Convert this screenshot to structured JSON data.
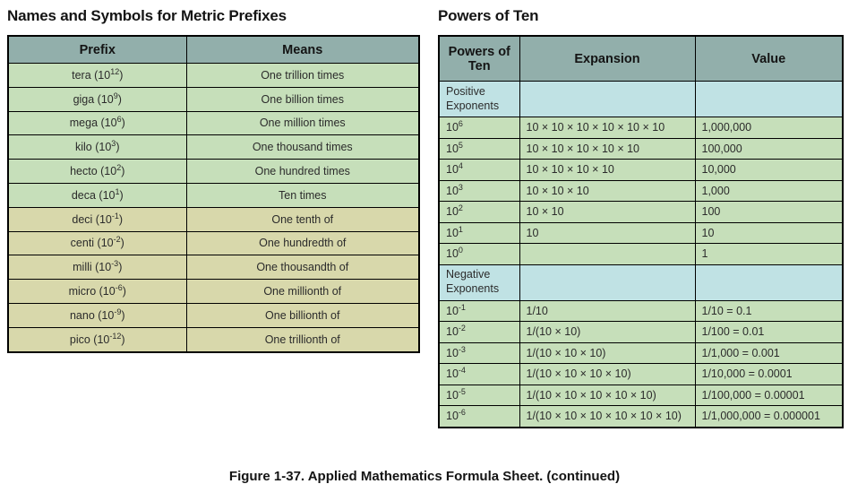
{
  "caption": "Figure 1-37. Applied Mathematics Formula Sheet. (continued)",
  "colors": {
    "header_bg": "#92afab",
    "positive_bg": "#c6dfba",
    "negative_bg": "#d8d8ab",
    "section_bg": "#c0e2e4",
    "border": "#000000"
  },
  "metric_prefixes": {
    "title": "Names and Symbols for Metric Prefixes",
    "columns": [
      "Prefix",
      "Means"
    ],
    "rows": [
      {
        "pre": "tera (10",
        "exp": "12",
        "post": ")",
        "means": "One trillion times",
        "group": "positive"
      },
      {
        "pre": "giga (10",
        "exp": "9",
        "post": ")",
        "means": "One billion times",
        "group": "positive"
      },
      {
        "pre": "mega (10",
        "exp": "6",
        "post": ")",
        "means": "One million times",
        "group": "positive"
      },
      {
        "pre": "kilo (10",
        "exp": "3",
        "post": ")",
        "means": "One thousand times",
        "group": "positive"
      },
      {
        "pre": "hecto (10",
        "exp": "2",
        "post": ")",
        "means": "One hundred times",
        "group": "positive"
      },
      {
        "pre": "deca (10",
        "exp": "1",
        "post": ")",
        "means": "Ten times",
        "group": "positive"
      },
      {
        "pre": "deci (10",
        "exp": "-1",
        "post": ")",
        "means": "One tenth of",
        "group": "negative"
      },
      {
        "pre": "centi (10",
        "exp": "-2",
        "post": ")",
        "means": "One hundredth of",
        "group": "negative"
      },
      {
        "pre": "milli (10",
        "exp": "-3",
        "post": ")",
        "means": "One thousandth of",
        "group": "negative"
      },
      {
        "pre": "micro (10",
        "exp": "-6",
        "post": ")",
        "means": "One millionth of",
        "group": "negative"
      },
      {
        "pre": "nano (10",
        "exp": "-9",
        "post": ")",
        "means": "One billionth of",
        "group": "negative"
      },
      {
        "pre": "pico (10",
        "exp": "-12",
        "post": ")",
        "means": "One trillionth of",
        "group": "negative"
      }
    ]
  },
  "powers_of_ten": {
    "title": "Powers of Ten",
    "columns": [
      "Powers of Ten",
      "Expansion",
      "Value"
    ],
    "sections": [
      {
        "label": "Positive Exponents",
        "rows": [
          {
            "base": "10",
            "exp": "6",
            "expansion": "10 × 10 × 10 × 10 × 10 × 10",
            "value": "1,000,000"
          },
          {
            "base": "10",
            "exp": "5",
            "expansion": "10 × 10 × 10 × 10 × 10",
            "value": "100,000"
          },
          {
            "base": "10",
            "exp": "4",
            "expansion": "10 × 10 × 10 × 10",
            "value": "10,000"
          },
          {
            "base": "10",
            "exp": "3",
            "expansion": "10 × 10 × 10",
            "value": "1,000"
          },
          {
            "base": "10",
            "exp": "2",
            "expansion": "10 × 10",
            "value": "100"
          },
          {
            "base": "10",
            "exp": "1",
            "expansion": "10",
            "value": "10"
          },
          {
            "base": "10",
            "exp": "0",
            "expansion": "",
            "value": "1"
          }
        ]
      },
      {
        "label": "Negative Exponents",
        "rows": [
          {
            "base": "10",
            "exp": "-1",
            "expansion": "1/10",
            "value": "1/10 = 0.1"
          },
          {
            "base": "10",
            "exp": "-2",
            "expansion": "1/(10 × 10)",
            "value": "1/100 = 0.01"
          },
          {
            "base": "10",
            "exp": "-3",
            "expansion": "1/(10 × 10 × 10)",
            "value": "1/1,000 = 0.001"
          },
          {
            "base": "10",
            "exp": "-4",
            "expansion": "1/(10 × 10 × 10 × 10)",
            "value": "1/10,000 = 0.0001"
          },
          {
            "base": "10",
            "exp": "-5",
            "expansion": "1/(10 × 10 × 10 × 10 × 10)",
            "value": "1/100,000 = 0.00001"
          },
          {
            "base": "10",
            "exp": "-6",
            "expansion": "1/(10 × 10 × 10 × 10 × 10 × 10)",
            "value": "1/1,000,000 = 0.000001"
          }
        ]
      }
    ]
  }
}
